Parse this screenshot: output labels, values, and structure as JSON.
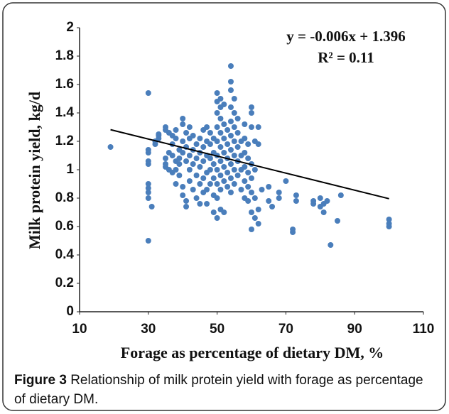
{
  "chart_data": {
    "type": "scatter",
    "x_label": "Forage as percentage of dietary DM, %",
    "y_label": "Milk protein yield, kg/d",
    "color": "#4a7ebb",
    "xlim": [
      10,
      110
    ],
    "xticks": [
      10,
      30,
      50,
      70,
      90,
      110
    ],
    "ylim": [
      0,
      2
    ],
    "yticks": [
      0,
      0.2,
      0.4,
      0.6,
      0.8,
      1,
      1.2,
      1.4,
      1.6,
      1.8,
      2
    ],
    "x": [
      19,
      30,
      30,
      30,
      30,
      30,
      30,
      30,
      30,
      30,
      30,
      31,
      32,
      32,
      33,
      33,
      33,
      35,
      35,
      35,
      35,
      35,
      36,
      36,
      36,
      37,
      37,
      37,
      37,
      38,
      38,
      38,
      38,
      38,
      39,
      39,
      39,
      39,
      40,
      40,
      40,
      40,
      40,
      40,
      41,
      41,
      41,
      41,
      41,
      42,
      42,
      42,
      42,
      42,
      43,
      43,
      43,
      43,
      44,
      44,
      44,
      44,
      45,
      45,
      45,
      45,
      45,
      46,
      46,
      46,
      46,
      46,
      47,
      47,
      47,
      47,
      47,
      47,
      48,
      48,
      48,
      48,
      48,
      49,
      49,
      49,
      49,
      49,
      49,
      50,
      50,
      50,
      50,
      50,
      50,
      50,
      50,
      50,
      50,
      51,
      51,
      51,
      51,
      51,
      51,
      51,
      51,
      51,
      52,
      52,
      52,
      52,
      52,
      52,
      52,
      53,
      53,
      53,
      53,
      53,
      54,
      54,
      54,
      54,
      54,
      54,
      54,
      54,
      54,
      54,
      55,
      55,
      55,
      55,
      55,
      55,
      55,
      56,
      56,
      56,
      56,
      56,
      57,
      57,
      57,
      57,
      58,
      58,
      58,
      58,
      58,
      58,
      59,
      59,
      59,
      59,
      59,
      60,
      60,
      60,
      60,
      60,
      60,
      60,
      60,
      61,
      61,
      61,
      61,
      62,
      62,
      62,
      62,
      63,
      65,
      65,
      66,
      68,
      68,
      70,
      72,
      72,
      73,
      73,
      78,
      78,
      80,
      80,
      81,
      81,
      82,
      83,
      85,
      86,
      100,
      100,
      100
    ],
    "values": [
      1.16,
      1.54,
      1.14,
      1.12,
      1.06,
      1.04,
      0.9,
      0.87,
      0.84,
      0.8,
      0.5,
      0.74,
      1.18,
      1.2,
      1.22,
      1.25,
      1.24,
      1.3,
      1.28,
      1.08,
      1.04,
      1.02,
      1.26,
      1.12,
      1.0,
      1.24,
      1.18,
      1.1,
      0.98,
      1.28,
      1.22,
      1.06,
      1.0,
      0.9,
      1.14,
      1.08,
      1.04,
      0.96,
      1.36,
      1.32,
      1.2,
      1.12,
      0.88,
      0.82,
      1.26,
      1.16,
      1.06,
      0.78,
      0.74,
      1.3,
      1.22,
      1.1,
      1.0,
      0.92,
      1.24,
      1.14,
      1.04,
      0.86,
      1.18,
      1.08,
      0.96,
      0.8,
      1.22,
      1.12,
      1.02,
      0.9,
      0.76,
      1.28,
      1.16,
      1.06,
      0.94,
      0.84,
      1.3,
      1.2,
      1.1,
      0.98,
      0.86,
      0.76,
      1.26,
      1.18,
      1.08,
      1.0,
      0.9,
      1.22,
      1.12,
      1.04,
      0.94,
      0.82,
      0.7,
      1.54,
      1.48,
      1.4,
      1.3,
      1.2,
      1.1,
      1.0,
      0.9,
      0.8,
      0.66,
      1.5,
      1.44,
      1.36,
      1.26,
      1.16,
      1.06,
      0.96,
      0.86,
      0.72,
      1.46,
      1.32,
      1.22,
      1.12,
      1.02,
      0.92,
      0.7,
      1.28,
      1.18,
      1.08,
      0.98,
      0.88,
      1.73,
      1.62,
      1.56,
      1.44,
      1.34,
      1.24,
      1.14,
      1.04,
      0.94,
      0.84,
      1.5,
      1.4,
      1.3,
      1.2,
      1.1,
      1.0,
      0.9,
      1.36,
      1.26,
      1.16,
      1.06,
      0.96,
      1.2,
      1.1,
      1.0,
      0.86,
      1.32,
      1.22,
      1.12,
      1.02,
      0.92,
      0.8,
      1.18,
      1.08,
      0.98,
      0.88,
      0.78,
      1.44,
      1.4,
      1.3,
      1.04,
      0.94,
      0.84,
      0.7,
      0.58,
      1.2,
      1.0,
      0.8,
      0.66,
      1.3,
      1.18,
      0.72,
      0.62,
      0.86,
      0.88,
      0.78,
      0.74,
      0.84,
      0.8,
      0.92,
      0.58,
      0.56,
      0.82,
      0.78,
      0.78,
      0.76,
      0.8,
      0.74,
      0.7,
      0.76,
      0.78,
      0.47,
      0.64,
      0.82,
      0.65,
      0.62,
      0.6
    ],
    "trendline": {
      "slope": -0.006,
      "intercept": 1.396,
      "x": [
        19,
        100
      ],
      "equation": "y = -0.006x + 1.396",
      "r2": "R² = 0.11"
    }
  },
  "caption": {
    "label": "Figure 3",
    "text": "Relationship of milk protein yield with forage as percentage of dietary DM."
  }
}
